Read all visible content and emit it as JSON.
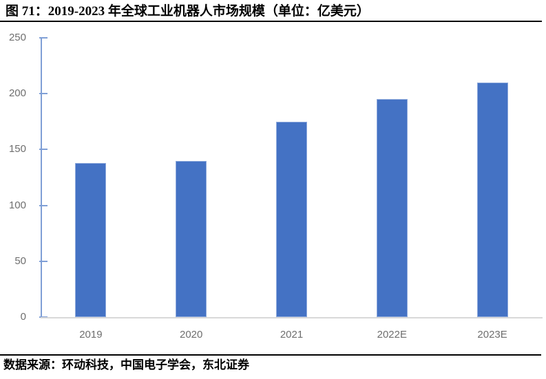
{
  "figure": {
    "label": "图 71：",
    "title": "图 71：2019-2023 年全球工业机器人市场规模（单位：亿美元）",
    "source": "数据来源：环动科技，中国电子学会，东北证券"
  },
  "chart_data": {
    "type": "bar",
    "title": "2019-2023 年全球工业机器人市场规模",
    "unit": "亿美元",
    "categories": [
      "2019",
      "2020",
      "2021",
      "2022E",
      "2023E"
    ],
    "values": [
      138,
      140,
      175,
      195,
      210
    ],
    "xlabel": "",
    "ylabel": "",
    "ylim": [
      0,
      250
    ],
    "yticks": [
      0,
      50,
      100,
      150,
      200,
      250
    ],
    "grid": false,
    "legend_position": "none",
    "colors": {
      "bar_fill": "#4472C4",
      "bar_border": "#8FAADC",
      "y_axis": "#7F9FD6",
      "x_axis": "#D9D9D9",
      "tick_label": "#6E6E6E",
      "title_text": "#000000"
    }
  }
}
